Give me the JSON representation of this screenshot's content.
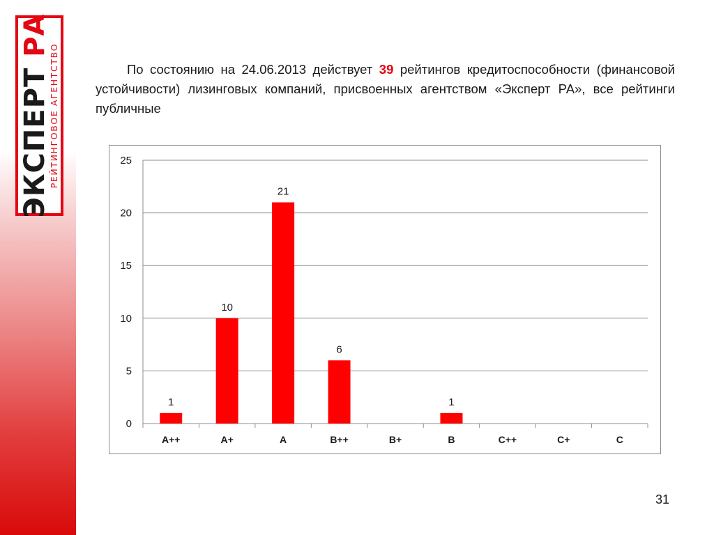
{
  "logo": {
    "main_part1": "ЭКСПЕРТ ",
    "main_part2": "РА",
    "sub": "РЕЙТИНГОВОЕ АГЕНТСТВО"
  },
  "intro": {
    "before": "По состоянию на 24.06.2013 действует ",
    "highlight": "39",
    "after": " рейтингов кредитоспособности (финансовой устойчивости) лизинговых компаний, присвоенных агентством «Эксперт РА», все рейтинги публичные"
  },
  "chart_data": {
    "type": "bar",
    "categories": [
      "A++",
      "A+",
      "A",
      "B++",
      "B+",
      "B",
      "C++",
      "C+",
      "C"
    ],
    "values": [
      1,
      10,
      21,
      6,
      0,
      1,
      0,
      0,
      0
    ],
    "data_labels": [
      "1",
      "10",
      "21",
      "6",
      "",
      "1",
      "",
      "",
      ""
    ],
    "ylim": [
      0,
      25
    ],
    "yticks": [
      0,
      5,
      10,
      15,
      20,
      25
    ],
    "grid": true,
    "legend": "none",
    "bar_color": "#ff0000",
    "title": "",
    "xlabel": "",
    "ylabel": ""
  },
  "page_number": "31",
  "colors": {
    "accent": "#e30613",
    "bar": "#ff0000",
    "gridline": "#8c8c8c",
    "text": "#1a1a1a"
  }
}
